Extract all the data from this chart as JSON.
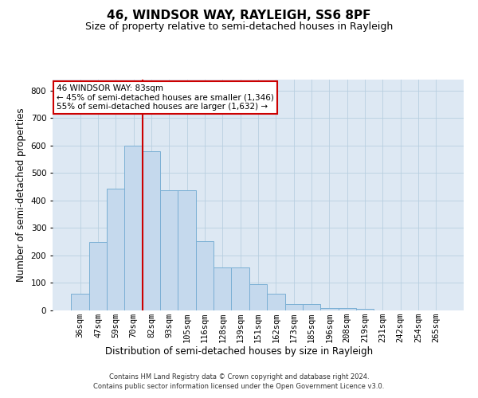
{
  "title": "46, WINDSOR WAY, RAYLEIGH, SS6 8PF",
  "subtitle": "Size of property relative to semi-detached houses in Rayleigh",
  "xlabel": "Distribution of semi-detached houses by size in Rayleigh",
  "ylabel": "Number of semi-detached properties",
  "footnote1": "Contains HM Land Registry data © Crown copyright and database right 2024.",
  "footnote2": "Contains public sector information licensed under the Open Government Licence v3.0.",
  "categories": [
    "36sqm",
    "47sqm",
    "59sqm",
    "70sqm",
    "82sqm",
    "93sqm",
    "105sqm",
    "116sqm",
    "128sqm",
    "139sqm",
    "151sqm",
    "162sqm",
    "173sqm",
    "185sqm",
    "196sqm",
    "208sqm",
    "219sqm",
    "231sqm",
    "242sqm",
    "254sqm",
    "265sqm"
  ],
  "values": [
    60,
    250,
    443,
    600,
    580,
    438,
    438,
    252,
    157,
    157,
    97,
    60,
    22,
    22,
    10,
    10,
    5,
    0,
    0,
    0,
    0
  ],
  "bar_color": "#c5d9ed",
  "bar_edge_color": "#7aafd4",
  "property_line_index": 4,
  "property_line_color": "#cc0000",
  "annotation_text": "46 WINDSOR WAY: 83sqm\n← 45% of semi-detached houses are smaller (1,346)\n55% of semi-detached houses are larger (1,632) →",
  "annotation_box_color": "#ffffff",
  "annotation_box_edge": "#cc0000",
  "ylim": [
    0,
    840
  ],
  "yticks": [
    0,
    100,
    200,
    300,
    400,
    500,
    600,
    700,
    800
  ],
  "plot_bg_color": "#dde8f3",
  "background_color": "#ffffff",
  "grid_color": "#b8cfe0",
  "title_fontsize": 11,
  "subtitle_fontsize": 9,
  "axis_label_fontsize": 8.5,
  "tick_fontsize": 7.5,
  "footnote_fontsize": 6
}
